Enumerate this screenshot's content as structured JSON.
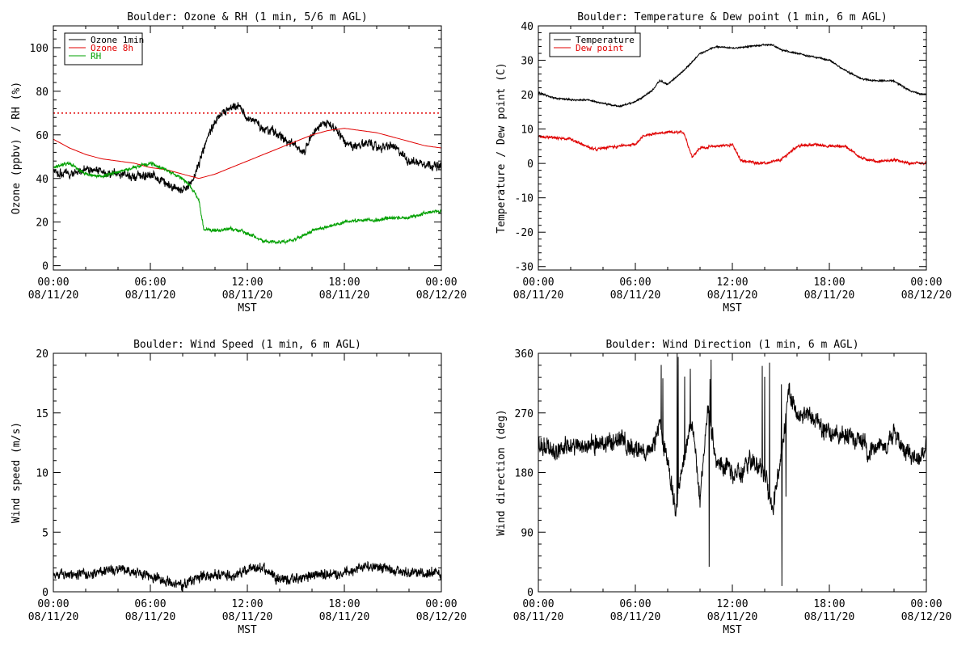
{
  "chart_data": [
    {
      "id": "ozone_rh",
      "type": "line",
      "title": "Boulder: Ozone & RH (1 min, 5/6 m AGL)",
      "xlabel": "MST",
      "ylabel": "Ozone (ppbv) / RH (%)",
      "ylim": [
        -2,
        110
      ],
      "yticks": [
        0,
        20,
        40,
        60,
        80,
        100
      ],
      "x_ticks": [
        {
          "hours": 0,
          "time": "00:00",
          "date": "08/11/20"
        },
        {
          "hours": 6,
          "time": "06:00",
          "date": "08/11/20"
        },
        {
          "hours": 12,
          "time": "12:00",
          "date": "08/11/20"
        },
        {
          "hours": 18,
          "time": "18:00",
          "date": "08/11/20"
        },
        {
          "hours": 24,
          "time": "00:00",
          "date": "08/12/20"
        }
      ],
      "reference_line": {
        "y": 70,
        "color": "#e00000",
        "style": "dotted"
      },
      "legend": {
        "placement": "top-left",
        "entries": [
          "Ozone 1min",
          "Ozone 8h",
          "RH"
        ]
      },
      "series": [
        {
          "name": "Ozone 1min",
          "color": "#000000",
          "x": [
            0,
            1,
            2,
            3,
            4,
            5,
            6,
            7,
            7.5,
            8,
            8.5,
            9,
            9.5,
            10,
            10.5,
            11,
            11.5,
            12,
            12.5,
            13,
            13.5,
            14,
            14.5,
            15,
            15.5,
            16,
            16.5,
            17,
            17.5,
            18,
            18.5,
            19,
            19.5,
            20,
            21,
            22,
            23,
            24
          ],
          "y": [
            43,
            42,
            44,
            43,
            42,
            41,
            42,
            38,
            36,
            34,
            37,
            47,
            58,
            66,
            70,
            72,
            73,
            68,
            66,
            63,
            62,
            60,
            57,
            55,
            52,
            61,
            64,
            65,
            63,
            57,
            54,
            55,
            57,
            54,
            55,
            48,
            47,
            45
          ]
        },
        {
          "name": "Ozone 8h",
          "color": "#e00000",
          "x": [
            0,
            1,
            2,
            3,
            4,
            5,
            6,
            7,
            8,
            9,
            10,
            11,
            12,
            13,
            14,
            15,
            16,
            17,
            18,
            19,
            20,
            21,
            22,
            23,
            24
          ],
          "y": [
            58,
            54,
            51,
            49,
            48,
            47,
            45,
            44,
            42,
            40,
            42,
            45,
            48,
            51,
            54,
            57,
            60,
            62,
            63,
            62,
            61,
            59,
            57,
            55,
            54
          ]
        },
        {
          "name": "RH",
          "color": "#00a000",
          "x": [
            0,
            1,
            2,
            3,
            4,
            5,
            6,
            7,
            8,
            8.5,
            9,
            9.3,
            10,
            11,
            12,
            13,
            14,
            15,
            16,
            17,
            18,
            19,
            20,
            21,
            22,
            23,
            23.5,
            24
          ],
          "y": [
            45,
            47,
            42,
            41,
            43,
            45,
            47,
            44,
            40,
            36,
            30,
            17,
            16,
            17,
            15,
            11,
            11,
            12,
            16,
            18,
            20,
            21,
            21,
            22,
            22,
            24,
            25,
            25
          ]
        }
      ]
    },
    {
      "id": "temp_dew",
      "type": "line",
      "title": "Boulder: Temperature & Dew point (1 min, 6 m AGL)",
      "xlabel": "MST",
      "ylabel": "Temperature / Dew point (C)",
      "ylim": [
        -31,
        40
      ],
      "yticks": [
        -30,
        -20,
        -10,
        0,
        10,
        20,
        30,
        40
      ],
      "x_ticks": [
        {
          "hours": 0,
          "time": "00:00",
          "date": "08/11/20"
        },
        {
          "hours": 6,
          "time": "06:00",
          "date": "08/11/20"
        },
        {
          "hours": 12,
          "time": "12:00",
          "date": "08/11/20"
        },
        {
          "hours": 18,
          "time": "18:00",
          "date": "08/11/20"
        },
        {
          "hours": 24,
          "time": "00:00",
          "date": "08/12/20"
        }
      ],
      "legend": {
        "placement": "top-left",
        "entries": [
          "Temperature",
          "Dew point"
        ]
      },
      "series": [
        {
          "name": "Temperature",
          "color": "#000000",
          "x": [
            0,
            1,
            2,
            3,
            4,
            5,
            6,
            7,
            7.5,
            8,
            9,
            10,
            11,
            12,
            13,
            14,
            14.5,
            15,
            16,
            17,
            18,
            19,
            20,
            21,
            22,
            23,
            24
          ],
          "y": [
            20.5,
            19,
            18.5,
            18.5,
            17.5,
            16.5,
            18,
            21,
            24,
            23,
            27,
            32,
            34,
            33.5,
            34,
            34.5,
            34.5,
            33,
            32,
            31,
            30,
            27,
            24.5,
            24,
            24,
            21,
            20
          ]
        },
        {
          "name": "Dew point",
          "color": "#e00000",
          "x": [
            0,
            1,
            2,
            3,
            3.5,
            4,
            5,
            6,
            6.5,
            7,
            8,
            9,
            9.5,
            10,
            11,
            12,
            12.5,
            13,
            14,
            15,
            16,
            17,
            18,
            19,
            20,
            21,
            22,
            23,
            24
          ],
          "y": [
            8,
            7.5,
            7,
            5,
            4,
            4.5,
            5,
            5.5,
            8,
            8.5,
            9,
            9,
            2,
            4.5,
            5,
            5.5,
            1,
            0.5,
            0,
            1,
            5,
            5.5,
            5,
            5,
            1.5,
            0.5,
            1,
            0,
            0
          ]
        }
      ]
    },
    {
      "id": "wind_speed",
      "type": "line",
      "title": "Boulder: Wind Speed (1 min, 6 m AGL)",
      "xlabel": "MST",
      "ylabel": "Wind speed (m/s)",
      "ylim": [
        0,
        20
      ],
      "yticks": [
        0,
        5,
        10,
        15,
        20
      ],
      "x_ticks": [
        {
          "hours": 0,
          "time": "00:00",
          "date": "08/11/20"
        },
        {
          "hours": 6,
          "time": "06:00",
          "date": "08/11/20"
        },
        {
          "hours": 12,
          "time": "12:00",
          "date": "08/11/20"
        },
        {
          "hours": 18,
          "time": "18:00",
          "date": "08/11/20"
        },
        {
          "hours": 24,
          "time": "00:00",
          "date": "08/12/20"
        }
      ],
      "series": [
        {
          "name": "",
          "color": "#000000",
          "x": [
            0,
            1,
            2,
            3,
            4,
            5,
            6,
            7,
            8,
            9,
            10,
            11,
            12,
            13,
            14,
            15,
            16,
            17,
            18,
            19,
            20,
            21,
            22,
            23,
            24
          ],
          "y": [
            1.5,
            1.4,
            1.5,
            1.8,
            2.0,
            1.6,
            1.3,
            0.8,
            0.7,
            1.2,
            1.5,
            1.3,
            1.8,
            2.0,
            1.1,
            1.0,
            1.4,
            1.5,
            1.6,
            2.0,
            2.2,
            1.8,
            1.6,
            1.5,
            1.6
          ]
        }
      ]
    },
    {
      "id": "wind_dir",
      "type": "line",
      "title": "Boulder: Wind Direction (1 min, 6 m AGL)",
      "xlabel": "MST",
      "ylabel": "Wind direction (deg)",
      "ylim": [
        0,
        360
      ],
      "yticks": [
        0,
        90,
        180,
        270,
        360
      ],
      "x_ticks": [
        {
          "hours": 0,
          "time": "00:00",
          "date": "08/11/20"
        },
        {
          "hours": 6,
          "time": "06:00",
          "date": "08/11/20"
        },
        {
          "hours": 12,
          "time": "12:00",
          "date": "08/11/20"
        },
        {
          "hours": 18,
          "time": "18:00",
          "date": "08/11/20"
        },
        {
          "hours": 24,
          "time": "00:00",
          "date": "08/12/20"
        }
      ],
      "series": [
        {
          "name": "",
          "color": "#000000",
          "x": [
            0,
            1,
            2,
            3,
            4,
            5,
            6,
            7,
            7.5,
            8,
            8.5,
            9,
            9.5,
            10,
            10.5,
            11,
            11.5,
            12,
            12.5,
            13,
            13.5,
            14,
            14.5,
            15,
            15.5,
            16,
            16.5,
            17,
            17.5,
            18,
            19,
            20,
            20.5,
            21,
            21.5,
            22,
            22.5,
            23,
            23.5,
            24
          ],
          "y": [
            220,
            215,
            218,
            225,
            220,
            230,
            215,
            210,
            250,
            195,
            120,
            200,
            260,
            140,
            280,
            200,
            190,
            180,
            175,
            200,
            190,
            180,
            120,
            200,
            300,
            260,
            270,
            260,
            250,
            240,
            235,
            230,
            210,
            225,
            220,
            240,
            220,
            210,
            200,
            220
          ]
        }
      ]
    }
  ]
}
